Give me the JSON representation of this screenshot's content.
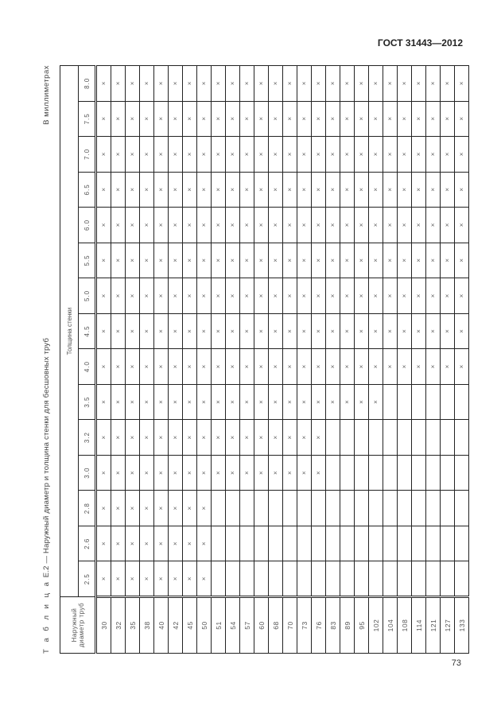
{
  "header": {
    "doc_code": "ГОСТ 31443—2012"
  },
  "caption": {
    "prefix": "Т а б л и ц а",
    "number": "Е.2",
    "title": "— Наружный диаметр и толщина стенки для бесшовных труб"
  },
  "units": "В миллиметрах",
  "table": {
    "diameter_header": "Наружный диаметр труб",
    "thickness_header": "Толщина стенки",
    "thickness": [
      "2.5",
      "2.6",
      "2.8",
      "3.0",
      "3.2",
      "3.5",
      "4.0",
      "4.5",
      "5.0",
      "5.5",
      "6.0",
      "6.5",
      "7.0",
      "7.5",
      "8.0"
    ],
    "mark": "×",
    "rows": [
      {
        "d": "30",
        "n": 15
      },
      {
        "d": "32",
        "n": 15
      },
      {
        "d": "35",
        "n": 15
      },
      {
        "d": "38",
        "n": 15
      },
      {
        "d": "40",
        "n": 15
      },
      {
        "d": "42",
        "n": 15
      },
      {
        "d": "45",
        "n": 15
      },
      {
        "d": "50",
        "n": 15
      },
      {
        "d": "51",
        "n": 12
      },
      {
        "d": "54",
        "n": 12
      },
      {
        "d": "57",
        "n": 12
      },
      {
        "d": "60",
        "n": 12
      },
      {
        "d": "68",
        "n": 12
      },
      {
        "d": "70",
        "n": 12
      },
      {
        "d": "73",
        "n": 12
      },
      {
        "d": "76",
        "n": 12
      },
      {
        "d": "83",
        "n": 10
      },
      {
        "d": "89",
        "n": 10
      },
      {
        "d": "95",
        "n": 10
      },
      {
        "d": "102",
        "n": 10
      },
      {
        "d": "104",
        "n": 9
      },
      {
        "d": "108",
        "n": 9
      },
      {
        "d": "114",
        "n": 9
      },
      {
        "d": "121",
        "n": 9
      },
      {
        "d": "127",
        "n": 9
      },
      {
        "d": "133",
        "n": 9
      }
    ]
  },
  "footer": {
    "page_number": "73"
  }
}
